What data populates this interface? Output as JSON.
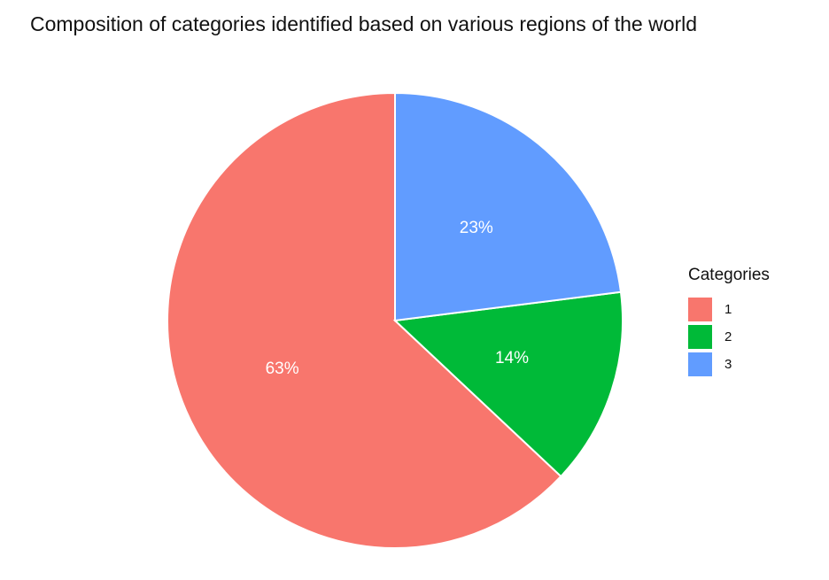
{
  "chart_data": {
    "type": "pie",
    "title": "Composition of categories identified based on various regions of the world",
    "legend_title": "Categories",
    "legend_placement": "right",
    "categories": [
      "1",
      "2",
      "3"
    ],
    "values": [
      63,
      14,
      23
    ],
    "labels": [
      "63%",
      "14%",
      "23%"
    ],
    "colors": [
      "#F8766D",
      "#00BA38",
      "#619CFF"
    ],
    "start": "top",
    "direction": "counterclockwise"
  }
}
